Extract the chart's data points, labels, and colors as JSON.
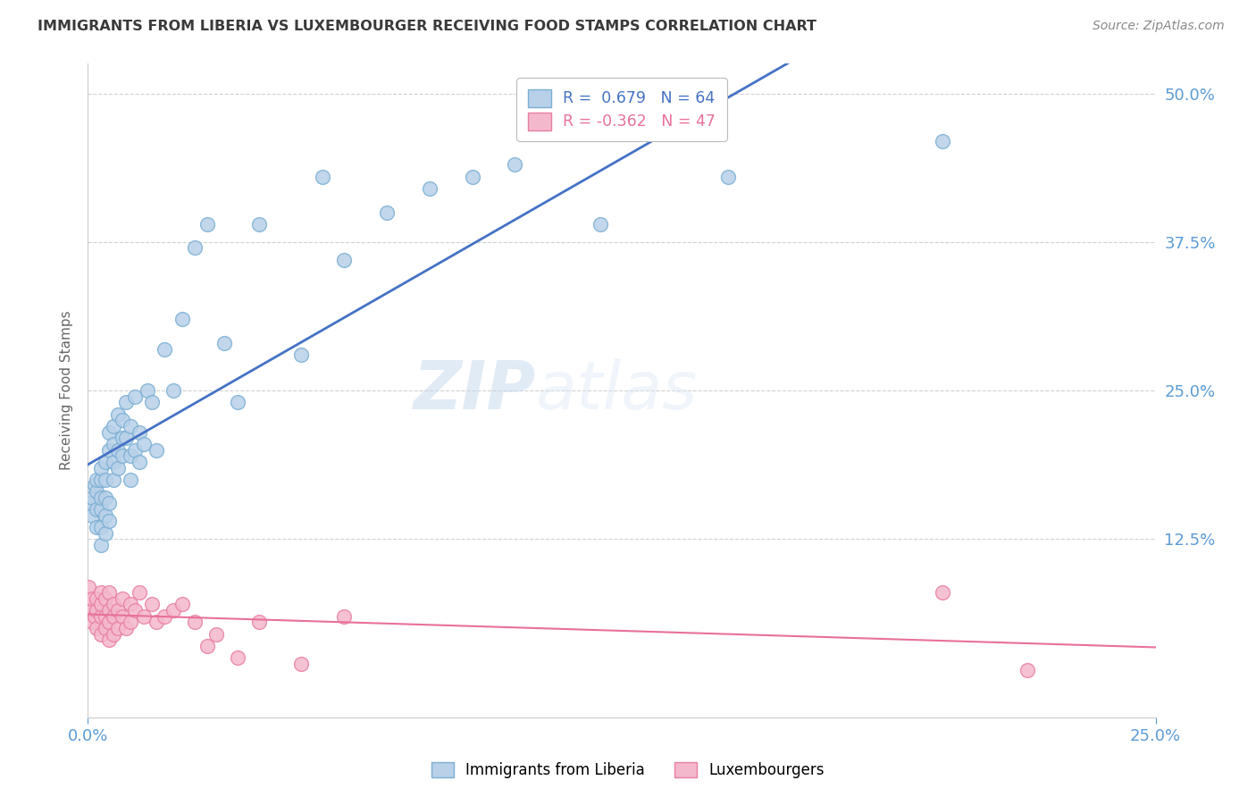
{
  "title": "IMMIGRANTS FROM LIBERIA VS LUXEMBOURGER RECEIVING FOOD STAMPS CORRELATION CHART",
  "source": "Source: ZipAtlas.com",
  "ylabel": "Receiving Food Stamps",
  "x_tick_labels": [
    "0.0%",
    "25.0%"
  ],
  "y_tick_labels_right": [
    "50.0%",
    "37.5%",
    "25.0%",
    "12.5%"
  ],
  "y_tick_positions": [
    0.5,
    0.375,
    0.25,
    0.125
  ],
  "x_min": 0.0,
  "x_max": 0.25,
  "y_min": -0.025,
  "y_max": 0.525,
  "liberia_color": "#b8d0e8",
  "liberia_edge": "#7aafd4",
  "luxembourg_color": "#f4b8cc",
  "luxembourg_edge": "#e87fa0",
  "line_liberia_color": "#4472c4",
  "line_luxembourg_color": "#e8709a",
  "R_liberia": 0.679,
  "N_liberia": 64,
  "R_luxembourg": -0.362,
  "N_luxembourg": 47,
  "title_color": "#3a3a3a",
  "source_color": "#888888",
  "axis_label_color": "#666666",
  "right_tick_color": "#5b9bd5",
  "bottom_tick_color": "#5b9bd5",
  "watermark_zip": "ZIP",
  "watermark_atlas": "atlas",
  "grid_color": "#cccccc",
  "background_color": "#ffffff",
  "liberia_x": [
    0.0005,
    0.001,
    0.001,
    0.0015,
    0.002,
    0.002,
    0.002,
    0.002,
    0.003,
    0.003,
    0.003,
    0.003,
    0.003,
    0.003,
    0.004,
    0.004,
    0.004,
    0.004,
    0.004,
    0.005,
    0.005,
    0.005,
    0.005,
    0.006,
    0.006,
    0.006,
    0.006,
    0.007,
    0.007,
    0.007,
    0.008,
    0.008,
    0.008,
    0.009,
    0.009,
    0.01,
    0.01,
    0.01,
    0.011,
    0.011,
    0.012,
    0.012,
    0.013,
    0.014,
    0.015,
    0.016,
    0.018,
    0.02,
    0.022,
    0.025,
    0.028,
    0.032,
    0.035,
    0.04,
    0.05,
    0.055,
    0.06,
    0.07,
    0.08,
    0.09,
    0.1,
    0.12,
    0.15,
    0.2
  ],
  "liberia_y": [
    0.155,
    0.145,
    0.16,
    0.17,
    0.135,
    0.15,
    0.165,
    0.175,
    0.12,
    0.135,
    0.15,
    0.16,
    0.175,
    0.185,
    0.13,
    0.145,
    0.16,
    0.175,
    0.19,
    0.14,
    0.155,
    0.2,
    0.215,
    0.175,
    0.19,
    0.205,
    0.22,
    0.185,
    0.2,
    0.23,
    0.195,
    0.21,
    0.225,
    0.21,
    0.24,
    0.175,
    0.195,
    0.22,
    0.2,
    0.245,
    0.19,
    0.215,
    0.205,
    0.25,
    0.24,
    0.2,
    0.285,
    0.25,
    0.31,
    0.37,
    0.39,
    0.29,
    0.24,
    0.39,
    0.28,
    0.43,
    0.36,
    0.4,
    0.42,
    0.43,
    0.44,
    0.39,
    0.43,
    0.46
  ],
  "luxembourg_x": [
    0.0002,
    0.0005,
    0.001,
    0.001,
    0.001,
    0.0015,
    0.002,
    0.002,
    0.002,
    0.003,
    0.003,
    0.003,
    0.003,
    0.004,
    0.004,
    0.004,
    0.005,
    0.005,
    0.005,
    0.005,
    0.006,
    0.006,
    0.006,
    0.007,
    0.007,
    0.008,
    0.008,
    0.009,
    0.01,
    0.01,
    0.011,
    0.012,
    0.013,
    0.015,
    0.016,
    0.018,
    0.02,
    0.022,
    0.025,
    0.028,
    0.03,
    0.035,
    0.04,
    0.05,
    0.06,
    0.2,
    0.22
  ],
  "luxembourg_y": [
    0.085,
    0.07,
    0.055,
    0.065,
    0.075,
    0.06,
    0.05,
    0.065,
    0.075,
    0.045,
    0.06,
    0.07,
    0.08,
    0.05,
    0.06,
    0.075,
    0.04,
    0.055,
    0.065,
    0.08,
    0.045,
    0.06,
    0.07,
    0.05,
    0.065,
    0.06,
    0.075,
    0.05,
    0.055,
    0.07,
    0.065,
    0.08,
    0.06,
    0.07,
    0.055,
    0.06,
    0.065,
    0.07,
    0.055,
    0.035,
    0.045,
    0.025,
    0.055,
    0.02,
    0.06,
    0.08,
    0.015
  ]
}
